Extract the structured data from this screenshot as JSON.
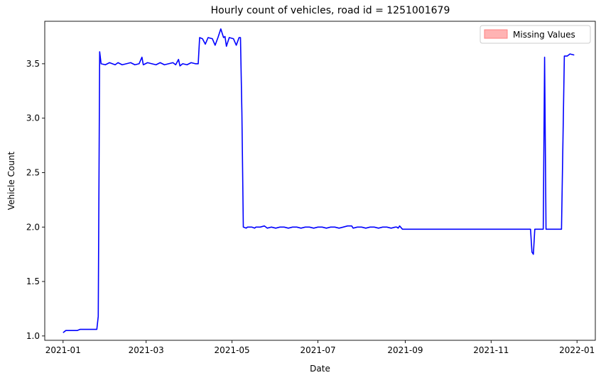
{
  "chart_data": {
    "type": "line",
    "title": "Hourly count of vehicles, road id = 1251001679",
    "xlabel": "Date",
    "ylabel": "Vehicle Count",
    "xlim": [
      "2020-12-19",
      "2022-01-14"
    ],
    "ylim": [
      0.96,
      3.89
    ],
    "x_ticks": [
      {
        "label": "2021-01",
        "date": "2021-01-01"
      },
      {
        "label": "2021-03",
        "date": "2021-03-01"
      },
      {
        "label": "2021-05",
        "date": "2021-05-01"
      },
      {
        "label": "2021-07",
        "date": "2021-07-01"
      },
      {
        "label": "2021-09",
        "date": "2021-09-01"
      },
      {
        "label": "2021-11",
        "date": "2021-11-01"
      },
      {
        "label": "2022-01",
        "date": "2022-01-01"
      }
    ],
    "y_ticks": [
      {
        "label": "1.0",
        "value": 1.0
      },
      {
        "label": "1.5",
        "value": 1.5
      },
      {
        "label": "2.0",
        "value": 2.0
      },
      {
        "label": "2.5",
        "value": 2.5
      },
      {
        "label": "3.0",
        "value": 3.0
      },
      {
        "label": "3.5",
        "value": 3.5
      }
    ],
    "grid": false,
    "legend": {
      "position": "top-right",
      "entries": [
        {
          "label": "Missing Values",
          "color": "#ffb3b3"
        }
      ]
    },
    "series": [
      {
        "color": "#0000ff",
        "points": [
          [
            "2021-01-01",
            1.03
          ],
          [
            "2021-01-02",
            1.04
          ],
          [
            "2021-01-03",
            1.05
          ],
          [
            "2021-01-05",
            1.05
          ],
          [
            "2021-01-07",
            1.05
          ],
          [
            "2021-01-09",
            1.05
          ],
          [
            "2021-01-11",
            1.05
          ],
          [
            "2021-01-13",
            1.06
          ],
          [
            "2021-01-15",
            1.06
          ],
          [
            "2021-01-17",
            1.06
          ],
          [
            "2021-01-19",
            1.06
          ],
          [
            "2021-01-21",
            1.06
          ],
          [
            "2021-01-23",
            1.06
          ],
          [
            "2021-01-25",
            1.06
          ],
          [
            "2021-01-26",
            1.18
          ],
          [
            "2021-01-27",
            3.61
          ],
          [
            "2021-01-28",
            3.5
          ],
          [
            "2021-01-31",
            3.49
          ],
          [
            "2021-02-03",
            3.51
          ],
          [
            "2021-02-05",
            3.5
          ],
          [
            "2021-02-07",
            3.49
          ],
          [
            "2021-02-09",
            3.51
          ],
          [
            "2021-02-12",
            3.49
          ],
          [
            "2021-02-15",
            3.5
          ],
          [
            "2021-02-18",
            3.51
          ],
          [
            "2021-02-21",
            3.49
          ],
          [
            "2021-02-24",
            3.5
          ],
          [
            "2021-02-26",
            3.56
          ],
          [
            "2021-02-27",
            3.49
          ],
          [
            "2021-03-02",
            3.51
          ],
          [
            "2021-03-05",
            3.5
          ],
          [
            "2021-03-08",
            3.49
          ],
          [
            "2021-03-11",
            3.51
          ],
          [
            "2021-03-14",
            3.49
          ],
          [
            "2021-03-17",
            3.5
          ],
          [
            "2021-03-20",
            3.51
          ],
          [
            "2021-03-22",
            3.49
          ],
          [
            "2021-03-24",
            3.54
          ],
          [
            "2021-03-25",
            3.48
          ],
          [
            "2021-03-27",
            3.5
          ],
          [
            "2021-03-30",
            3.49
          ],
          [
            "2021-04-02",
            3.51
          ],
          [
            "2021-04-05",
            3.5
          ],
          [
            "2021-04-07",
            3.5
          ],
          [
            "2021-04-08",
            3.74
          ],
          [
            "2021-04-10",
            3.73
          ],
          [
            "2021-04-12",
            3.68
          ],
          [
            "2021-04-14",
            3.74
          ],
          [
            "2021-04-17",
            3.73
          ],
          [
            "2021-04-19",
            3.67
          ],
          [
            "2021-04-21",
            3.74
          ],
          [
            "2021-04-23",
            3.82
          ],
          [
            "2021-04-25",
            3.74
          ],
          [
            "2021-04-26",
            3.75
          ],
          [
            "2021-04-27",
            3.66
          ],
          [
            "2021-04-29",
            3.74
          ],
          [
            "2021-05-02",
            3.73
          ],
          [
            "2021-05-04",
            3.67
          ],
          [
            "2021-05-06",
            3.74
          ],
          [
            "2021-05-07",
            3.74
          ],
          [
            "2021-05-08",
            3.05
          ],
          [
            "2021-05-09",
            2.0
          ],
          [
            "2021-05-11",
            1.99
          ],
          [
            "2021-05-12",
            2.0
          ],
          [
            "2021-05-15",
            2.0
          ],
          [
            "2021-05-17",
            1.99
          ],
          [
            "2021-05-18",
            2.0
          ],
          [
            "2021-05-21",
            2.0
          ],
          [
            "2021-05-24",
            2.01
          ],
          [
            "2021-05-26",
            1.99
          ],
          [
            "2021-05-29",
            2.0
          ],
          [
            "2021-06-01",
            1.99
          ],
          [
            "2021-06-04",
            2.0
          ],
          [
            "2021-06-07",
            2.0
          ],
          [
            "2021-06-10",
            1.99
          ],
          [
            "2021-06-13",
            2.0
          ],
          [
            "2021-06-16",
            2.0
          ],
          [
            "2021-06-19",
            1.99
          ],
          [
            "2021-06-22",
            2.0
          ],
          [
            "2021-06-25",
            2.0
          ],
          [
            "2021-06-28",
            1.99
          ],
          [
            "2021-07-01",
            2.0
          ],
          [
            "2021-07-04",
            2.0
          ],
          [
            "2021-07-07",
            1.99
          ],
          [
            "2021-07-10",
            2.0
          ],
          [
            "2021-07-13",
            2.0
          ],
          [
            "2021-07-16",
            1.99
          ],
          [
            "2021-07-19",
            2.0
          ],
          [
            "2021-07-22",
            2.01
          ],
          [
            "2021-07-25",
            2.01
          ],
          [
            "2021-07-26",
            1.99
          ],
          [
            "2021-07-29",
            2.0
          ],
          [
            "2021-08-01",
            2.0
          ],
          [
            "2021-08-04",
            1.99
          ],
          [
            "2021-08-07",
            2.0
          ],
          [
            "2021-08-10",
            2.0
          ],
          [
            "2021-08-13",
            1.99
          ],
          [
            "2021-08-16",
            2.0
          ],
          [
            "2021-08-19",
            2.0
          ],
          [
            "2021-08-22",
            1.99
          ],
          [
            "2021-08-25",
            2.0
          ],
          [
            "2021-08-26",
            2.0
          ],
          [
            "2021-08-27",
            1.99
          ],
          [
            "2021-08-28",
            2.01
          ],
          [
            "2021-08-30",
            1.98
          ],
          [
            "2021-09-01",
            1.98
          ],
          [
            "2021-09-15",
            1.98
          ],
          [
            "2021-10-01",
            1.98
          ],
          [
            "2021-10-15",
            1.98
          ],
          [
            "2021-11-01",
            1.98
          ],
          [
            "2021-11-15",
            1.98
          ],
          [
            "2021-11-28",
            1.98
          ],
          [
            "2021-11-29",
            1.98
          ],
          [
            "2021-11-30",
            1.77
          ],
          [
            "2021-12-01",
            1.75
          ],
          [
            "2021-12-02",
            1.98
          ],
          [
            "2021-12-05",
            1.98
          ],
          [
            "2021-12-08",
            1.98
          ],
          [
            "2021-12-09",
            3.56
          ],
          [
            "2021-12-10",
            1.98
          ],
          [
            "2021-12-14",
            1.98
          ],
          [
            "2021-12-18",
            1.98
          ],
          [
            "2021-12-21",
            1.98
          ],
          [
            "2021-12-23",
            3.57
          ],
          [
            "2021-12-25",
            3.57
          ],
          [
            "2021-12-27",
            3.59
          ],
          [
            "2021-12-30",
            3.58
          ]
        ]
      }
    ]
  }
}
